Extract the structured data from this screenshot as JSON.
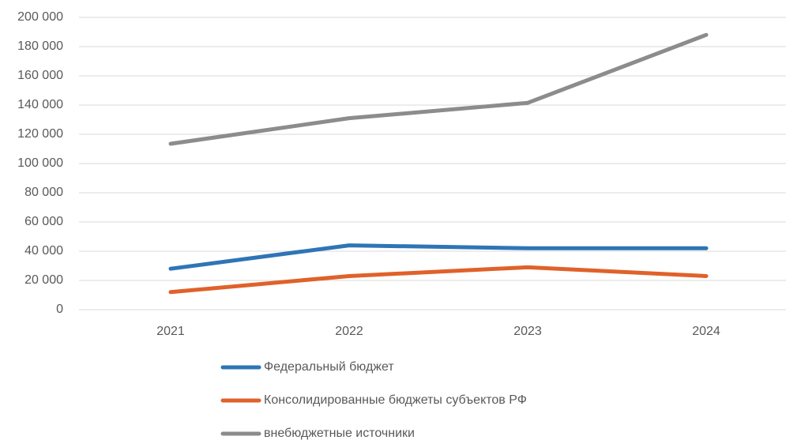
{
  "chart_data": {
    "type": "line",
    "categories": [
      "2021",
      "2022",
      "2023",
      "2024"
    ],
    "series": [
      {
        "name": "Федеральный бюджет",
        "color": "#2e75b6",
        "values": [
          28000,
          44000,
          42000,
          42000
        ]
      },
      {
        "name": "Консолидированные бюджеты субъектов РФ",
        "color": "#e0612a",
        "values": [
          12000,
          23000,
          29000,
          23000
        ]
      },
      {
        "name": "внебюджетные источники",
        "color": "#8c8c8c",
        "values": [
          113500,
          131000,
          141500,
          188000
        ]
      }
    ],
    "ylim": [
      0,
      200000
    ],
    "yticks": [
      0,
      {
        "value": 20000,
        "label": "20 000"
      },
      {
        "value": 40000,
        "label": "40 000"
      },
      {
        "value": 60000,
        "label": "60 000"
      },
      {
        "value": 80000,
        "label": "80 000"
      },
      {
        "value": 100000,
        "label": "100 000"
      },
      {
        "value": 120000,
        "label": "120 000"
      },
      {
        "value": 140000,
        "label": "140 000"
      },
      {
        "value": 160000,
        "label": "160 000"
      },
      {
        "value": 180000,
        "label": "180 000"
      },
      {
        "value": 200000,
        "label": "200 000"
      }
    ],
    "grid": true,
    "legend": "bottom"
  }
}
